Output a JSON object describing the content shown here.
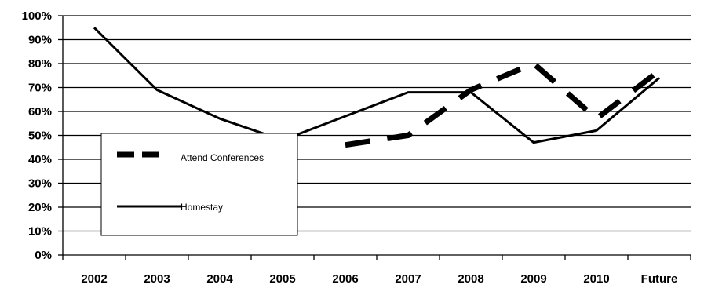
{
  "chart_data": {
    "type": "line",
    "categories": [
      "2002",
      "2003",
      "2004",
      "2005",
      "2006",
      "2007",
      "2008",
      "2009",
      "2010",
      "Future"
    ],
    "ylim": [
      0,
      100
    ],
    "yticks": [
      0,
      10,
      20,
      30,
      40,
      50,
      60,
      70,
      80,
      90,
      100
    ],
    "ytick_labels": [
      "0%",
      "10%",
      "20%",
      "30%",
      "40%",
      "50%",
      "60%",
      "70%",
      "80%",
      "90%",
      "100%"
    ],
    "grid": true,
    "legend_position": "left-center",
    "series": [
      {
        "name": "Attend Conferences",
        "style": "dashed-thick",
        "color": "#000000",
        "values": [
          null,
          null,
          null,
          null,
          46,
          50,
          69,
          80,
          57,
          77
        ]
      },
      {
        "name": "Homestay",
        "style": "solid",
        "color": "#000000",
        "values": [
          95,
          69,
          57,
          48,
          58,
          68,
          68,
          47,
          52,
          74
        ]
      }
    ]
  }
}
